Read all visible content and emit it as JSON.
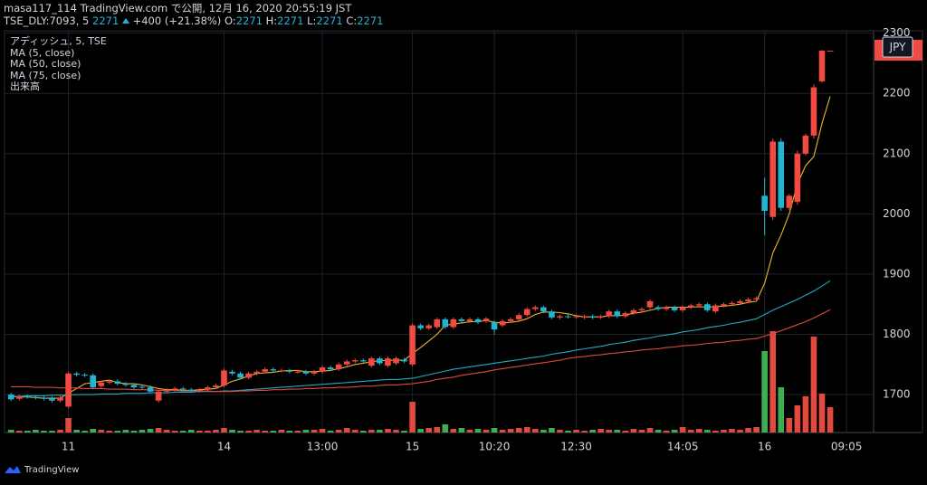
{
  "header": {
    "publish": "masa117_114 TradingView.com で公開, 12月 16, 2020 20:55:19 JST",
    "symbol": "TSE_DLY:7093, 5",
    "last": 2271,
    "change": "+400 (+21.38%)",
    "ohlc": [
      {
        "label": "O:",
        "value": 2271
      },
      {
        "label": "H:",
        "value": 2271
      },
      {
        "label": "L:",
        "value": 2271
      },
      {
        "label": "C:",
        "value": 2271
      }
    ]
  },
  "footer": {
    "brand": "TradingView"
  },
  "chart_data": {
    "type": "candlestick",
    "title": "アディッシュ, 5, TSE",
    "currency": "JPY",
    "up_color": "#ef4b43",
    "down_color": "#22b5d3",
    "grid": true,
    "xlim": [
      -0.8,
      105.3
    ],
    "ylim": [
      1637,
      2298
    ],
    "yticks": [
      1700,
      1800,
      1900,
      2000,
      2100,
      2200,
      2300
    ],
    "xticks": [
      {
        "value": 7,
        "label": "11"
      },
      {
        "value": 26,
        "label": "14"
      },
      {
        "value": 38,
        "label": "13:00"
      },
      {
        "value": 49,
        "label": "15"
      },
      {
        "value": 59,
        "label": "10:20"
      },
      {
        "value": 69,
        "label": "12:30"
      },
      {
        "value": 82,
        "label": "14:05"
      },
      {
        "value": 92,
        "label": "16"
      },
      {
        "value": 102,
        "label": "09:05"
      }
    ],
    "open": [
      1700,
      1693,
      1697,
      1696,
      1695,
      1694,
      1690,
      1680,
      1735,
      1733,
      1732,
      1714,
      1720,
      1722,
      1718,
      1716,
      1713,
      1712,
      1690,
      1705,
      1708,
      1710,
      1708,
      1706,
      1708,
      1712,
      1715,
      1738,
      1735,
      1728,
      1735,
      1738,
      1742,
      1740,
      1740,
      1738,
      1738,
      1735,
      1738,
      1745,
      1742,
      1750,
      1755,
      1757,
      1748,
      1760,
      1748,
      1752,
      1758,
      1750,
      1815,
      1810,
      1812,
      1825,
      1812,
      1825,
      1822,
      1825,
      1822,
      1820,
      1815,
      1822,
      1825,
      1832,
      1842,
      1845,
      1838,
      1828,
      1830,
      1829,
      1828,
      1830,
      1828,
      1830,
      1838,
      1830,
      1835,
      1840,
      1845,
      1845,
      1842,
      1845,
      1840,
      1845,
      1848,
      1850,
      1838,
      1848,
      1850,
      1852,
      1855,
      1858,
      2030,
      1995,
      2120,
      2010,
      2020,
      2100,
      2130,
      2220,
      2271
    ],
    "high": [
      1703,
      1700,
      1700,
      1699,
      1698,
      1697,
      1698,
      1738,
      1738,
      1736,
      1735,
      1723,
      1725,
      1725,
      1721,
      1719,
      1716,
      1715,
      1708,
      1711,
      1713,
      1713,
      1711,
      1711,
      1715,
      1718,
      1743,
      1741,
      1738,
      1738,
      1741,
      1745,
      1745,
      1743,
      1743,
      1741,
      1741,
      1741,
      1748,
      1748,
      1753,
      1758,
      1760,
      1760,
      1763,
      1763,
      1763,
      1763,
      1761,
      1818,
      1818,
      1818,
      1828,
      1828,
      1828,
      1828,
      1828,
      1828,
      1829,
      1823,
      1825,
      1828,
      1835,
      1845,
      1848,
      1848,
      1841,
      1833,
      1833,
      1833,
      1833,
      1833,
      1833,
      1841,
      1841,
      1838,
      1843,
      1845,
      1858,
      1848,
      1848,
      1848,
      1848,
      1851,
      1853,
      1853,
      1851,
      1853,
      1855,
      1858,
      1861,
      1863,
      2060,
      2125,
      2125,
      2033,
      2105,
      2133,
      2215,
      2272,
      2271
    ],
    "low": [
      1689,
      1690,
      1693,
      1692,
      1690,
      1687,
      1687,
      1677,
      1730,
      1729,
      1709,
      1711,
      1717,
      1715,
      1713,
      1709,
      1709,
      1702,
      1687,
      1702,
      1705,
      1705,
      1703,
      1703,
      1705,
      1709,
      1712,
      1732,
      1725,
      1725,
      1732,
      1735,
      1737,
      1737,
      1735,
      1735,
      1732,
      1732,
      1735,
      1739,
      1739,
      1747,
      1752,
      1752,
      1745,
      1749,
      1745,
      1749,
      1752,
      1747,
      1807,
      1807,
      1809,
      1809,
      1809,
      1819,
      1819,
      1817,
      1819,
      1800,
      1812,
      1819,
      1822,
      1829,
      1839,
      1835,
      1825,
      1825,
      1826,
      1826,
      1825,
      1825,
      1825,
      1827,
      1827,
      1827,
      1832,
      1837,
      1842,
      1839,
      1839,
      1837,
      1837,
      1842,
      1845,
      1837,
      1835,
      1845,
      1847,
      1849,
      1852,
      1855,
      1965,
      1990,
      2005,
      2007,
      2015,
      2097,
      2125,
      2218,
      2271
    ],
    "close": [
      1692,
      1697,
      1696,
      1695,
      1693,
      1690,
      1695,
      1735,
      1733,
      1732,
      1712,
      1720,
      1722,
      1718,
      1716,
      1712,
      1712,
      1705,
      1705,
      1708,
      1710,
      1708,
      1706,
      1708,
      1712,
      1715,
      1740,
      1735,
      1728,
      1735,
      1738,
      1742,
      1740,
      1740,
      1738,
      1738,
      1735,
      1738,
      1745,
      1742,
      1750,
      1755,
      1757,
      1755,
      1760,
      1752,
      1760,
      1760,
      1755,
      1815,
      1810,
      1815,
      1825,
      1812,
      1825,
      1822,
      1825,
      1820,
      1826,
      1808,
      1822,
      1825,
      1832,
      1842,
      1845,
      1838,
      1828,
      1830,
      1829,
      1830,
      1830,
      1828,
      1830,
      1838,
      1830,
      1835,
      1840,
      1842,
      1855,
      1842,
      1845,
      1840,
      1845,
      1848,
      1850,
      1840,
      1848,
      1850,
      1852,
      1855,
      1858,
      1860,
      2005,
      2120,
      2010,
      2030,
      2100,
      2130,
      2210,
      2271,
      2271
    ],
    "volume": {
      "name": "出来高",
      "up_color": "#e04a3f",
      "down_color": "#3fae52",
      "values": [
        3,
        2,
        2,
        3,
        2,
        2,
        3,
        16,
        3,
        2,
        4,
        3,
        2,
        2,
        3,
        2,
        3,
        4,
        5,
        3,
        2,
        2,
        3,
        2,
        2,
        3,
        5,
        3,
        2,
        2,
        3,
        2,
        2,
        3,
        2,
        2,
        3,
        3,
        4,
        2,
        3,
        5,
        3,
        2,
        3,
        3,
        4,
        3,
        2,
        34,
        4,
        5,
        6,
        9,
        4,
        5,
        3,
        4,
        3,
        5,
        3,
        4,
        5,
        6,
        4,
        3,
        5,
        3,
        2,
        3,
        2,
        3,
        4,
        3,
        3,
        2,
        4,
        3,
        5,
        3,
        2,
        3,
        6,
        3,
        4,
        3,
        2,
        3,
        4,
        3,
        5,
        6,
        90,
        112,
        50,
        16,
        30,
        40,
        106,
        43,
        28
      ]
    },
    "series": [
      {
        "name": "MA (5, close)",
        "color": "#f0b429",
        "values": [
          1697,
          1696,
          1696,
          1695,
          1694,
          1694,
          1694,
          1702,
          1710,
          1718,
          1720,
          1722,
          1724,
          1720,
          1718,
          1718,
          1716,
          1713,
          1710,
          1708,
          1708,
          1707,
          1707,
          1708,
          1709,
          1710,
          1716,
          1722,
          1726,
          1731,
          1735,
          1736,
          1737,
          1739,
          1740,
          1740,
          1738,
          1738,
          1739,
          1740,
          1743,
          1746,
          1750,
          1752,
          1755,
          1756,
          1757,
          1757,
          1757,
          1768,
          1778,
          1789,
          1800,
          1815,
          1817,
          1819,
          1821,
          1821,
          1823,
          1820,
          1819,
          1820,
          1822,
          1826,
          1833,
          1837,
          1837,
          1836,
          1834,
          1831,
          1829,
          1829,
          1829,
          1831,
          1831,
          1832,
          1835,
          1837,
          1840,
          1843,
          1845,
          1845,
          1845,
          1845,
          1846,
          1845,
          1846,
          1847,
          1848,
          1850,
          1853,
          1855,
          1885,
          1935,
          1965,
          2000,
          2050,
          2080,
          2095,
          2150,
          2195
        ]
      },
      {
        "name": "MA (50, close)",
        "color": "#26a6c9",
        "values": [
          1697,
          1697,
          1698,
          1698,
          1698,
          1699,
          1699,
          1699,
          1700,
          1700,
          1700,
          1701,
          1701,
          1701,
          1702,
          1702,
          1702,
          1703,
          1703,
          1703,
          1704,
          1704,
          1704,
          1705,
          1705,
          1705,
          1706,
          1706,
          1707,
          1708,
          1709,
          1710,
          1711,
          1712,
          1713,
          1714,
          1715,
          1716,
          1717,
          1718,
          1719,
          1720,
          1721,
          1722,
          1723,
          1724,
          1725,
          1725,
          1726,
          1727,
          1730,
          1733,
          1736,
          1739,
          1742,
          1744,
          1746,
          1748,
          1750,
          1752,
          1754,
          1756,
          1758,
          1760,
          1762,
          1764,
          1767,
          1769,
          1771,
          1774,
          1776,
          1778,
          1780,
          1783,
          1785,
          1787,
          1790,
          1792,
          1794,
          1797,
          1799,
          1801,
          1804,
          1806,
          1808,
          1811,
          1813,
          1815,
          1818,
          1820,
          1823,
          1826,
          1833,
          1840,
          1846,
          1852,
          1858,
          1865,
          1872,
          1880,
          1889
        ]
      },
      {
        "name": "MA (75, close)",
        "color": "#e0483c",
        "values": [
          1713,
          1713,
          1713,
          1712,
          1712,
          1712,
          1711,
          1711,
          1711,
          1710,
          1710,
          1710,
          1709,
          1709,
          1709,
          1708,
          1708,
          1708,
          1707,
          1707,
          1707,
          1706,
          1706,
          1706,
          1706,
          1705,
          1705,
          1705,
          1706,
          1706,
          1707,
          1707,
          1708,
          1708,
          1709,
          1709,
          1710,
          1710,
          1711,
          1711,
          1712,
          1712,
          1713,
          1714,
          1714,
          1715,
          1716,
          1716,
          1717,
          1718,
          1720,
          1722,
          1725,
          1727,
          1729,
          1732,
          1734,
          1736,
          1738,
          1741,
          1743,
          1745,
          1747,
          1749,
          1751,
          1753,
          1755,
          1757,
          1760,
          1762,
          1763,
          1765,
          1766,
          1768,
          1769,
          1771,
          1772,
          1774,
          1775,
          1776,
          1778,
          1779,
          1781,
          1782,
          1783,
          1785,
          1786,
          1787,
          1789,
          1790,
          1792,
          1793,
          1797,
          1801,
          1806,
          1811,
          1816,
          1821,
          1827,
          1834,
          1841
        ]
      }
    ]
  }
}
